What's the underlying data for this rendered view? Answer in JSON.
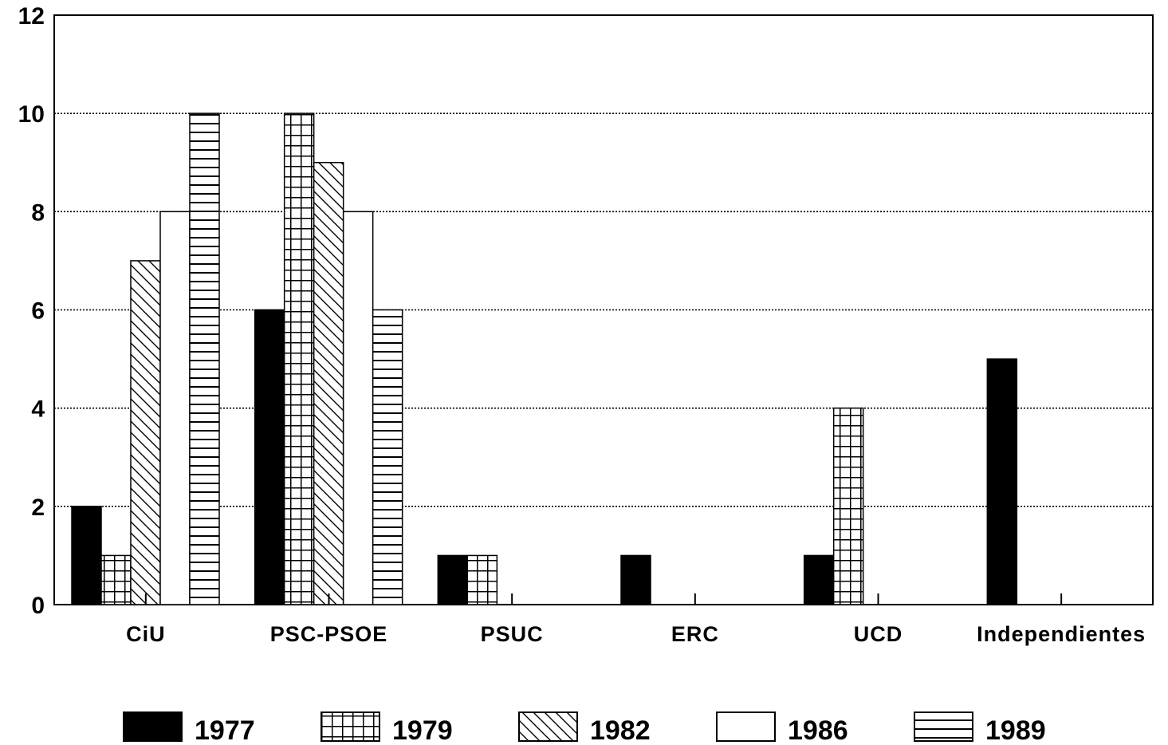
{
  "chart_data": {
    "type": "bar",
    "title": "",
    "xlabel": "",
    "ylabel": "",
    "ylim": [
      0,
      12
    ],
    "yticks": [
      "0",
      "2",
      "4",
      "6",
      "8",
      "10",
      "12"
    ],
    "grid": true,
    "legend_position": "bottom",
    "categories": [
      "CiU",
      "PSC-PSOE",
      "PSUC",
      "ERC",
      "UCD",
      "Independientes"
    ],
    "series": [
      {
        "name": "1977",
        "pattern": "solid-black",
        "values": [
          2,
          6,
          1,
          1,
          1,
          5
        ]
      },
      {
        "name": "1979",
        "pattern": "grid",
        "values": [
          1,
          10,
          1,
          0,
          4,
          0
        ]
      },
      {
        "name": "1982",
        "pattern": "diagonal",
        "values": [
          7,
          9,
          0,
          0,
          0,
          0
        ]
      },
      {
        "name": "1986",
        "pattern": "white",
        "values": [
          8,
          8,
          0,
          0,
          0,
          0
        ]
      },
      {
        "name": "1989",
        "pattern": "horizontal",
        "values": [
          10,
          6,
          0,
          0,
          0,
          0
        ]
      }
    ],
    "colors": {
      "bar_stroke": "#000000",
      "solid": "#000000",
      "background": "#ffffff"
    }
  }
}
